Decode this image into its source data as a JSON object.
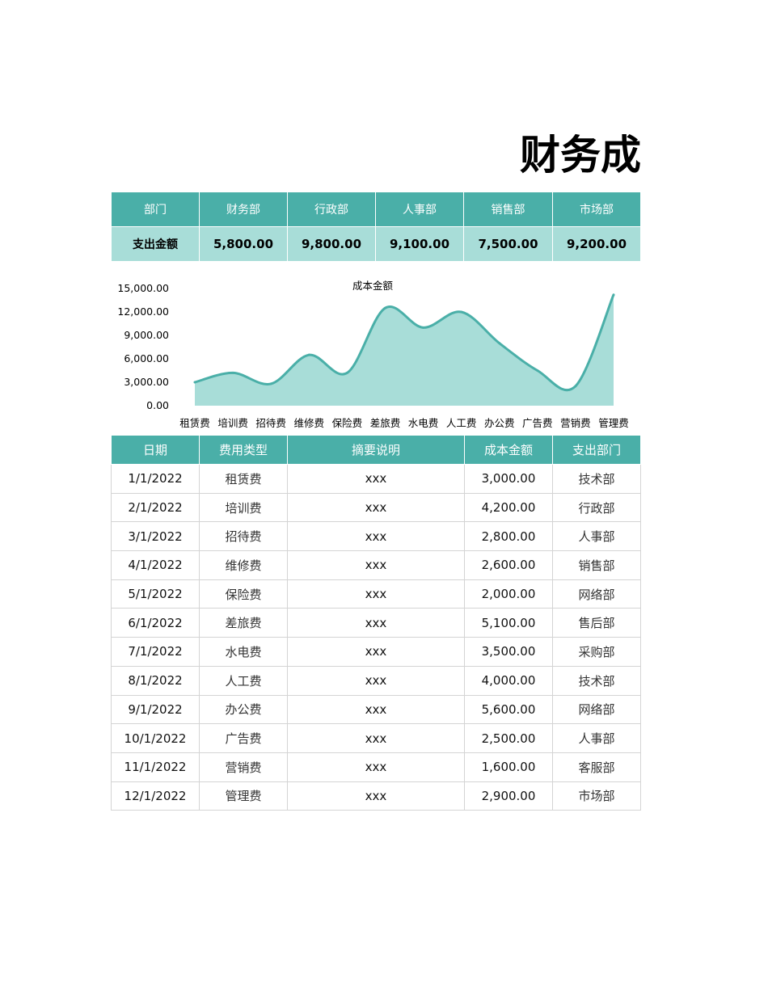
{
  "page_title": "财务成",
  "summary": {
    "headers": [
      "部门",
      "财务部",
      "行政部",
      "人事部",
      "销售部",
      "市场部"
    ],
    "row_label": "支出金额",
    "values": [
      "5,800.00",
      "9,800.00",
      "9,100.00",
      "7,500.00",
      "9,200.00"
    ]
  },
  "chart_data": {
    "type": "area",
    "title": "成本金额",
    "categories": [
      "租赁费",
      "培训费",
      "招待费",
      "维修费",
      "保险费",
      "差旅费",
      "水电费",
      "人工费",
      "办公费",
      "广告费",
      "营销费",
      "管理费"
    ],
    "values": [
      3000,
      4200,
      2800,
      6500,
      4200,
      12500,
      10000,
      12000,
      8000,
      4500,
      2500,
      14200
    ],
    "y_ticks": [
      "0.00",
      "3,000.00",
      "6,000.00",
      "9,000.00",
      "12,000.00",
      "15,000.00"
    ],
    "ylim": [
      0,
      15000
    ],
    "grid": false,
    "colors": {
      "area": "#a8ddd8",
      "line": "#4aafa8"
    }
  },
  "detail": {
    "headers": [
      "日期",
      "费用类型",
      "摘要说明",
      "成本金额",
      "支出部门"
    ],
    "rows": [
      [
        "1/1/2022",
        "租赁费",
        "xxx",
        "3,000.00",
        "技术部"
      ],
      [
        "2/1/2022",
        "培训费",
        "xxx",
        "4,200.00",
        "行政部"
      ],
      [
        "3/1/2022",
        "招待费",
        "xxx",
        "2,800.00",
        "人事部"
      ],
      [
        "4/1/2022",
        "维修费",
        "xxx",
        "2,600.00",
        "销售部"
      ],
      [
        "5/1/2022",
        "保险费",
        "xxx",
        "2,000.00",
        "网络部"
      ],
      [
        "6/1/2022",
        "差旅费",
        "xxx",
        "5,100.00",
        "售后部"
      ],
      [
        "7/1/2022",
        "水电费",
        "xxx",
        "3,500.00",
        "采购部"
      ],
      [
        "8/1/2022",
        "人工费",
        "xxx",
        "4,000.00",
        "技术部"
      ],
      [
        "9/1/2022",
        "办公费",
        "xxx",
        "5,600.00",
        "网络部"
      ],
      [
        "10/1/2022",
        "广告费",
        "xxx",
        "2,500.00",
        "人事部"
      ],
      [
        "11/1/2022",
        "营销费",
        "xxx",
        "1,600.00",
        "客服部"
      ],
      [
        "12/1/2022",
        "管理费",
        "xxx",
        "2,900.00",
        "市场部"
      ]
    ]
  }
}
